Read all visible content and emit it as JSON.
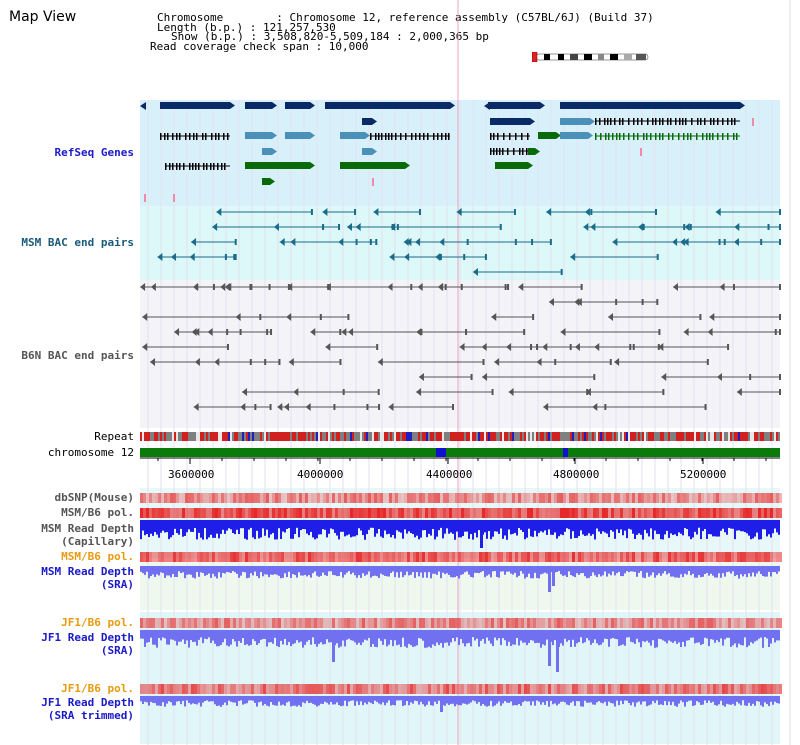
{
  "view": {
    "title": "Map View",
    "chromosome_line": "Chromosome        : Chromosome 12, reference assembly (C57BL/6J) (Build 37)",
    "length_line": "Length (b.p.) : 121,257,530",
    "show_line": "Show (b.p.) : 3,508,820-5,509,184 : 2,000,365 bp",
    "coverage_line": "Read coverage check span : 10,000"
  },
  "tracks": {
    "refseq": "RefSeq Genes",
    "msm_bac": "MSM BAC end pairs",
    "b6n_bac": "B6N BAC end pairs",
    "repeat": "Repeat",
    "chromosome": "chromosome 12",
    "dbsnp": "dbSNP(Mouse)",
    "msm_pol1": "MSM/B6 pol.",
    "msm_depth_cap_1": "MSM Read Depth",
    "msm_depth_cap_2": "(Capillary)",
    "msm_pol2": "MSM/B6 pol.",
    "msm_depth_sra_1": "MSM Read Depth",
    "msm_depth_sra_2": "(SRA)",
    "jf1_pol1": "JF1/B6 pol.",
    "jf1_depth_1": "JF1 Read Depth",
    "jf1_depth_2": "(SRA)",
    "jf1_pol2": "JF1/B6 pol.",
    "jf1_trim_1": "JF1 Read Depth",
    "jf1_trim_2": "(SRA trimmed)"
  },
  "axis": {
    "ticks": [
      "3600000",
      "4000000",
      "4400000",
      "4800000",
      "5200000"
    ]
  },
  "colors": {
    "refseq_bg": "#d8f0fa",
    "msm_bg": "#dcf8f8",
    "b6n_bg": "#f4f4f8",
    "navy": "#0a2a66",
    "steel": "#4a90b8",
    "green": "#0a6a0a",
    "teal_line": "#1a6a8a",
    "gray_line": "#555555",
    "depth_blue": "#2020e0",
    "depth_light": "#7070f0"
  }
}
